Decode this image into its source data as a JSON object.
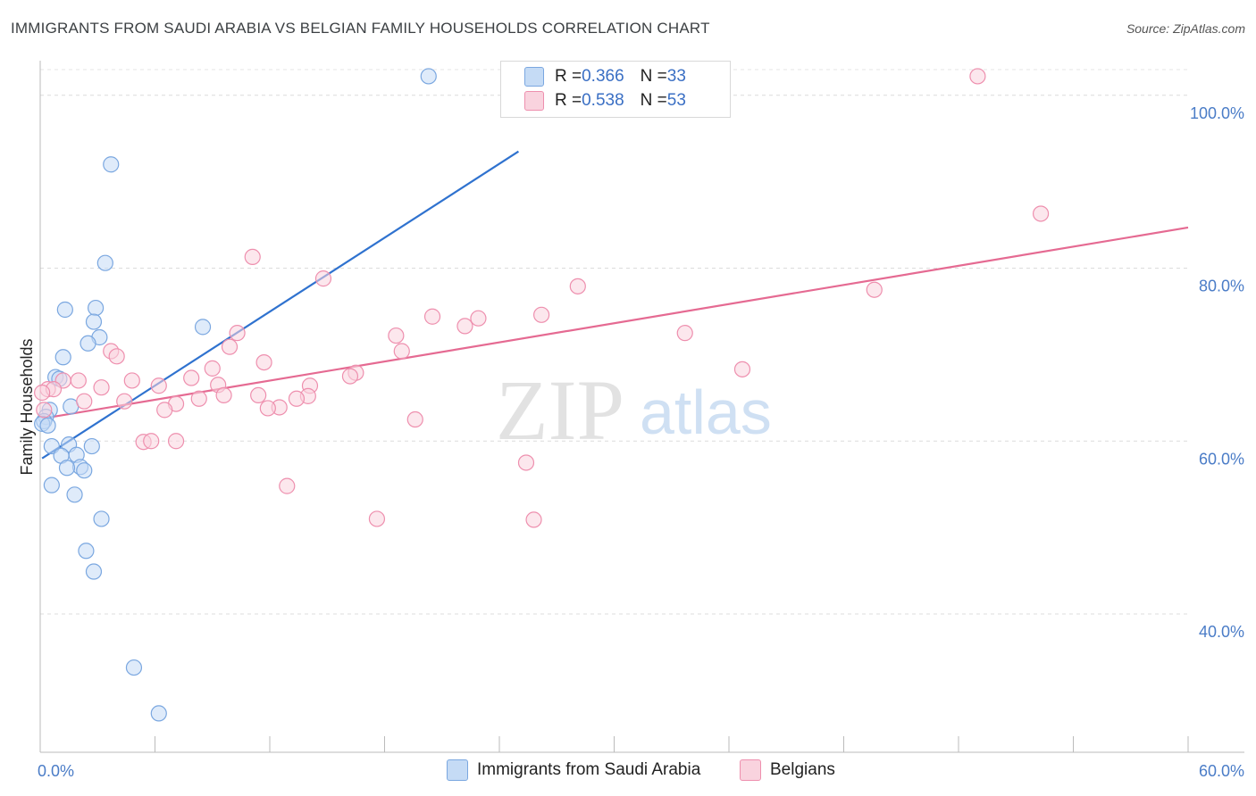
{
  "title": "IMMIGRANTS FROM SAUDI ARABIA VS BELGIAN FAMILY HOUSEHOLDS CORRELATION CHART",
  "source": "Source: ZipAtlas.com",
  "watermark": {
    "zip": "ZIP",
    "atlas": "atlas"
  },
  "legend_top": [
    {
      "r_label": "R = ",
      "r_value": "0.366",
      "n_label": "N = ",
      "n_value": "33",
      "color": "#a9c8f0"
    },
    {
      "r_label": "R = ",
      "r_value": "0.538",
      "n_label": "N = ",
      "n_value": "53",
      "color": "#f6b8c9"
    }
  ],
  "legend_bottom": [
    {
      "label": "Immigrants from Saudi Arabia",
      "color": "#a9c8f0"
    },
    {
      "label": "Belgians",
      "color": "#f6b8c9"
    }
  ],
  "chart_data": {
    "type": "scatter",
    "title": "IMMIGRANTS FROM SAUDI ARABIA VS BELGIAN FAMILY HOUSEHOLDS CORRELATION CHART",
    "xlabel": "",
    "ylabel": "Family Households",
    "xlim": [
      0,
      60
    ],
    "ylim": [
      24,
      104
    ],
    "x_tick_labels": [
      "0.0%",
      "60.0%"
    ],
    "y_ticks": [
      {
        "value": 100,
        "label": "100.0%"
      },
      {
        "value": 80,
        "label": "80.0%"
      },
      {
        "value": 60,
        "label": "60.0%"
      },
      {
        "value": 40,
        "label": "40.0%"
      }
    ],
    "series": [
      {
        "name": "Immigrants from Saudi Arabia",
        "color": "#7aa7e0",
        "fill": "#c5dbf5",
        "trend": {
          "x0": 0.1,
          "y0": 58.0,
          "x1": 25.0,
          "y1": 93.5,
          "color": "#2f72cf"
        },
        "points": [
          [
            20.3,
            102.2
          ],
          [
            3.7,
            92.0
          ],
          [
            3.4,
            80.6
          ],
          [
            2.9,
            75.4
          ],
          [
            1.3,
            75.2
          ],
          [
            2.8,
            73.8
          ],
          [
            3.1,
            72.0
          ],
          [
            2.5,
            71.3
          ],
          [
            8.5,
            73.2
          ],
          [
            1.2,
            69.7
          ],
          [
            0.8,
            67.4
          ],
          [
            1.0,
            67.2
          ],
          [
            1.6,
            64.0
          ],
          [
            0.5,
            63.6
          ],
          [
            0.3,
            62.8
          ],
          [
            0.2,
            62.3
          ],
          [
            0.6,
            59.4
          ],
          [
            1.5,
            59.6
          ],
          [
            2.7,
            59.4
          ],
          [
            1.1,
            58.3
          ],
          [
            1.9,
            58.4
          ],
          [
            2.1,
            57.0
          ],
          [
            1.4,
            56.9
          ],
          [
            2.3,
            56.6
          ],
          [
            0.6,
            54.9
          ],
          [
            1.8,
            53.8
          ],
          [
            3.2,
            51.0
          ],
          [
            2.4,
            47.3
          ],
          [
            2.8,
            44.9
          ],
          [
            4.9,
            33.8
          ],
          [
            6.2,
            28.5
          ],
          [
            0.1,
            62.0
          ],
          [
            0.4,
            61.8
          ]
        ]
      },
      {
        "name": "Belgians",
        "color": "#ee8fae",
        "fill": "#f9d3de",
        "trend": {
          "x0": 0.1,
          "y0": 62.6,
          "x1": 60.0,
          "y1": 84.7,
          "color": "#e56a92"
        },
        "points": [
          [
            49.0,
            102.2
          ],
          [
            52.3,
            86.3
          ],
          [
            11.1,
            81.3
          ],
          [
            14.8,
            78.8
          ],
          [
            28.1,
            77.9
          ],
          [
            43.6,
            77.5
          ],
          [
            20.5,
            74.4
          ],
          [
            22.9,
            74.2
          ],
          [
            26.2,
            74.6
          ],
          [
            22.2,
            73.3
          ],
          [
            33.7,
            72.5
          ],
          [
            10.3,
            72.5
          ],
          [
            18.6,
            72.2
          ],
          [
            9.9,
            70.9
          ],
          [
            18.9,
            70.4
          ],
          [
            3.7,
            70.4
          ],
          [
            4.0,
            69.8
          ],
          [
            11.7,
            69.1
          ],
          [
            9.0,
            68.4
          ],
          [
            36.7,
            68.3
          ],
          [
            16.5,
            67.9
          ],
          [
            16.2,
            67.5
          ],
          [
            7.9,
            67.3
          ],
          [
            4.8,
            67.0
          ],
          [
            1.2,
            67.0
          ],
          [
            2.0,
            67.0
          ],
          [
            9.3,
            66.5
          ],
          [
            6.2,
            66.4
          ],
          [
            14.1,
            66.4
          ],
          [
            3.2,
            66.2
          ],
          [
            0.4,
            66.0
          ],
          [
            0.7,
            66.0
          ],
          [
            9.6,
            65.3
          ],
          [
            11.4,
            65.3
          ],
          [
            14.0,
            65.2
          ],
          [
            13.4,
            64.9
          ],
          [
            8.3,
            64.9
          ],
          [
            2.3,
            64.6
          ],
          [
            4.4,
            64.6
          ],
          [
            7.1,
            64.3
          ],
          [
            12.5,
            63.9
          ],
          [
            6.5,
            63.6
          ],
          [
            11.9,
            63.8
          ],
          [
            0.2,
            63.6
          ],
          [
            19.6,
            62.5
          ],
          [
            5.4,
            59.9
          ],
          [
            5.8,
            60.0
          ],
          [
            7.1,
            60.0
          ],
          [
            25.4,
            57.5
          ],
          [
            12.9,
            54.8
          ],
          [
            17.6,
            51.0
          ],
          [
            25.8,
            50.9
          ],
          [
            0.1,
            65.6
          ]
        ]
      }
    ]
  }
}
